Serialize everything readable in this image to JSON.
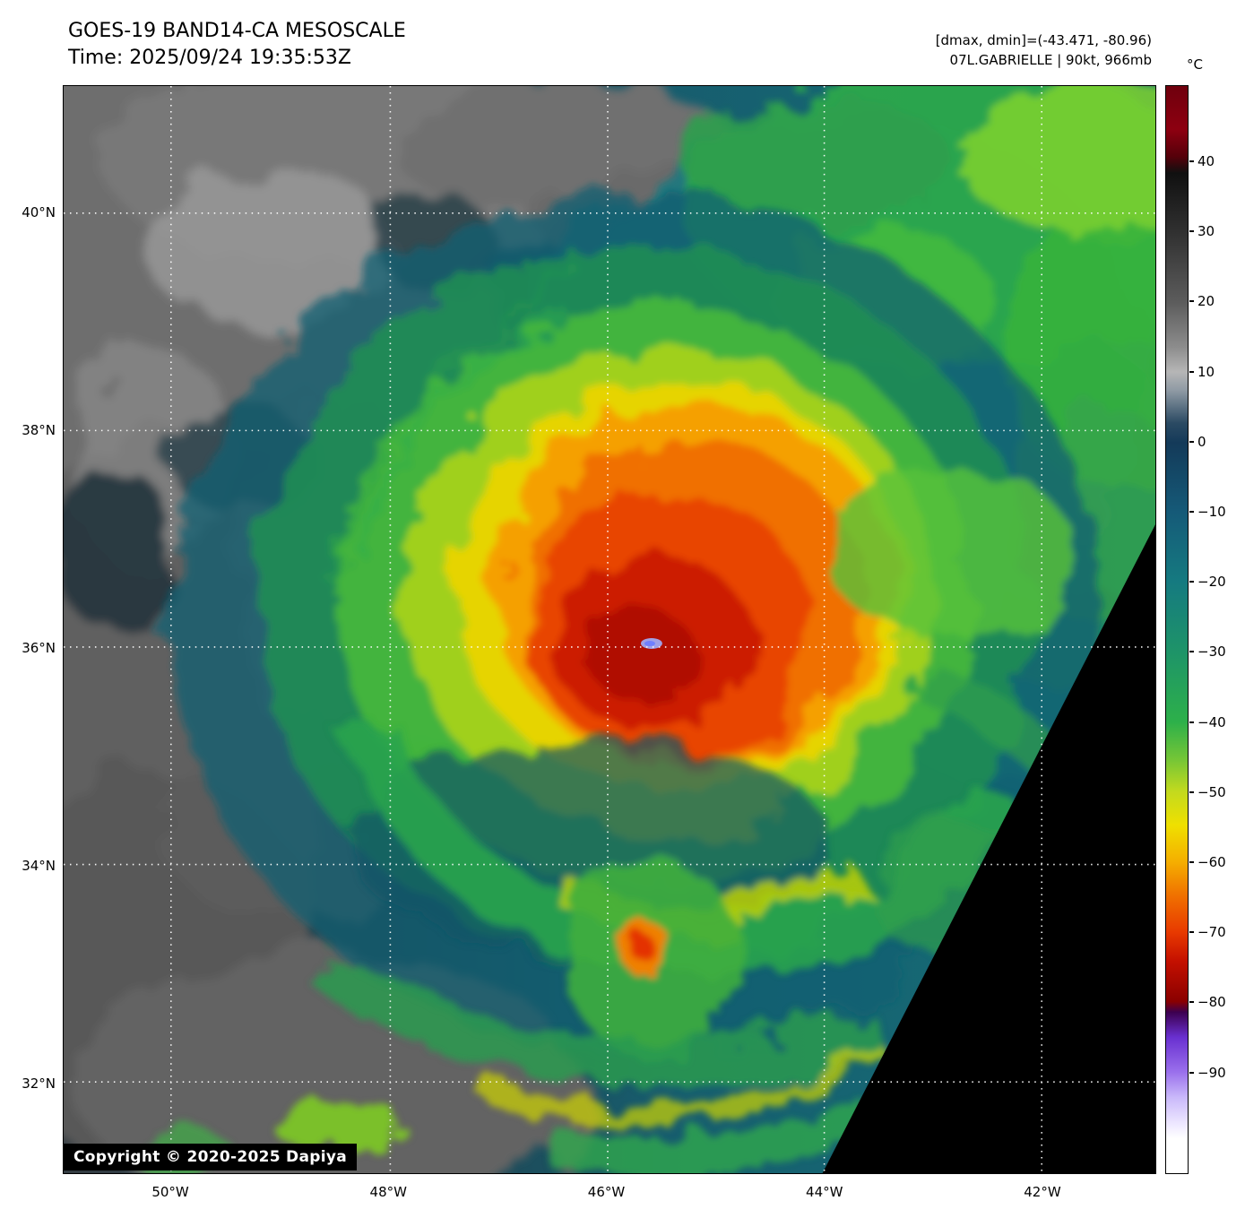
{
  "header": {
    "title": "GOES-19 BAND14-CA MESOSCALE",
    "time": "Time: 2025/09/24 19:35:53Z",
    "stats": "[dmax, dmin]=(-43.471, -80.96)",
    "storm": "07L.GABRIELLE | 90kt, 966mb"
  },
  "colorbar": {
    "unit": "°C",
    "ticks": [
      "40",
      "30",
      "20",
      "10",
      "0",
      "−10",
      "−20",
      "−30",
      "−40",
      "−50",
      "−60",
      "−70",
      "−80",
      "−90"
    ],
    "gradient": [
      [
        "0%",
        "#6f000d"
      ],
      [
        "4%",
        "#8d0010"
      ],
      [
        "6.5%",
        "#55000a"
      ],
      [
        "8%",
        "#101010"
      ],
      [
        "13.4%",
        "#303030"
      ],
      [
        "19.9%",
        "#5c5c5c"
      ],
      [
        "24%",
        "#8c8c8c"
      ],
      [
        "26.3%",
        "#b6b6b6"
      ],
      [
        "28%",
        "#8f9aa4"
      ],
      [
        "31%",
        "#2b4a63"
      ],
      [
        "32.8%",
        "#143a59"
      ],
      [
        "39.2%",
        "#155a78"
      ],
      [
        "45.6%",
        "#157a80"
      ],
      [
        "52.1%",
        "#1e9468"
      ],
      [
        "58.5%",
        "#2db04a"
      ],
      [
        "62%",
        "#76c636"
      ],
      [
        "64.9%",
        "#c3da1e"
      ],
      [
        "68%",
        "#efe000"
      ],
      [
        "71.4%",
        "#f5ae00"
      ],
      [
        "74.5%",
        "#f07000"
      ],
      [
        "77.8%",
        "#e83a00"
      ],
      [
        "80.5%",
        "#c41000"
      ],
      [
        "84.2%",
        "#8a0000"
      ],
      [
        "85.2%",
        "#3c0050"
      ],
      [
        "87.5%",
        "#6930d0"
      ],
      [
        "90.7%",
        "#9a70ec"
      ],
      [
        "93%",
        "#c9b8fa"
      ],
      [
        "95.5%",
        "#eee8ff"
      ],
      [
        "96.8%",
        "#ffffff"
      ],
      [
        "100%",
        "#ffffff"
      ]
    ]
  },
  "map": {
    "lat_labels": [
      "40°N",
      "38°N",
      "36°N",
      "34°N",
      "32°N"
    ],
    "lon_labels": [
      "50°W",
      "48°W",
      "46°W",
      "44°W",
      "42°W"
    ],
    "copyright": "Copyright © 2020-2025 Dapiya"
  }
}
